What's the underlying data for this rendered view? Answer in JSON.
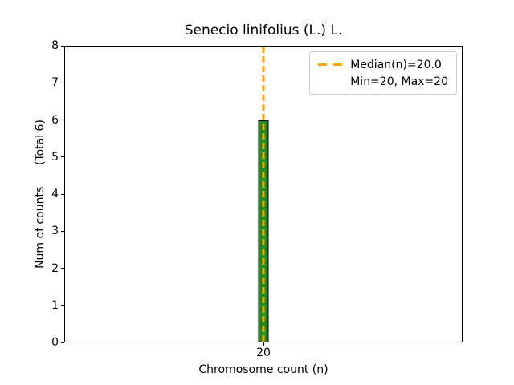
{
  "chart_data": {
    "type": "bar",
    "title": "Senecio linifolius (L.) L.",
    "xlabel": "Chromosome count (n)",
    "ylabel": "Num of counts      (Total 6)",
    "categories": [
      "20"
    ],
    "values": [
      6
    ],
    "total_counts": 6,
    "ylim": [
      0,
      8
    ],
    "ytick_step": 1,
    "grid": false,
    "annotations": {
      "median_line_x": 20,
      "median_value": "20.0",
      "min": 20,
      "max": 20
    },
    "legend": {
      "position": "upper right",
      "items": [
        {
          "label": "Median(n)=20.0",
          "marker": "orange-dashed-line"
        },
        {
          "label": "Min=20, Max=20",
          "marker": "none"
        }
      ]
    },
    "colors": {
      "bar_fill": "#228B22",
      "bar_edge": "#000000",
      "median_line": "#FFA500",
      "legend_border": "#cccccc",
      "axes": "#000000"
    }
  }
}
